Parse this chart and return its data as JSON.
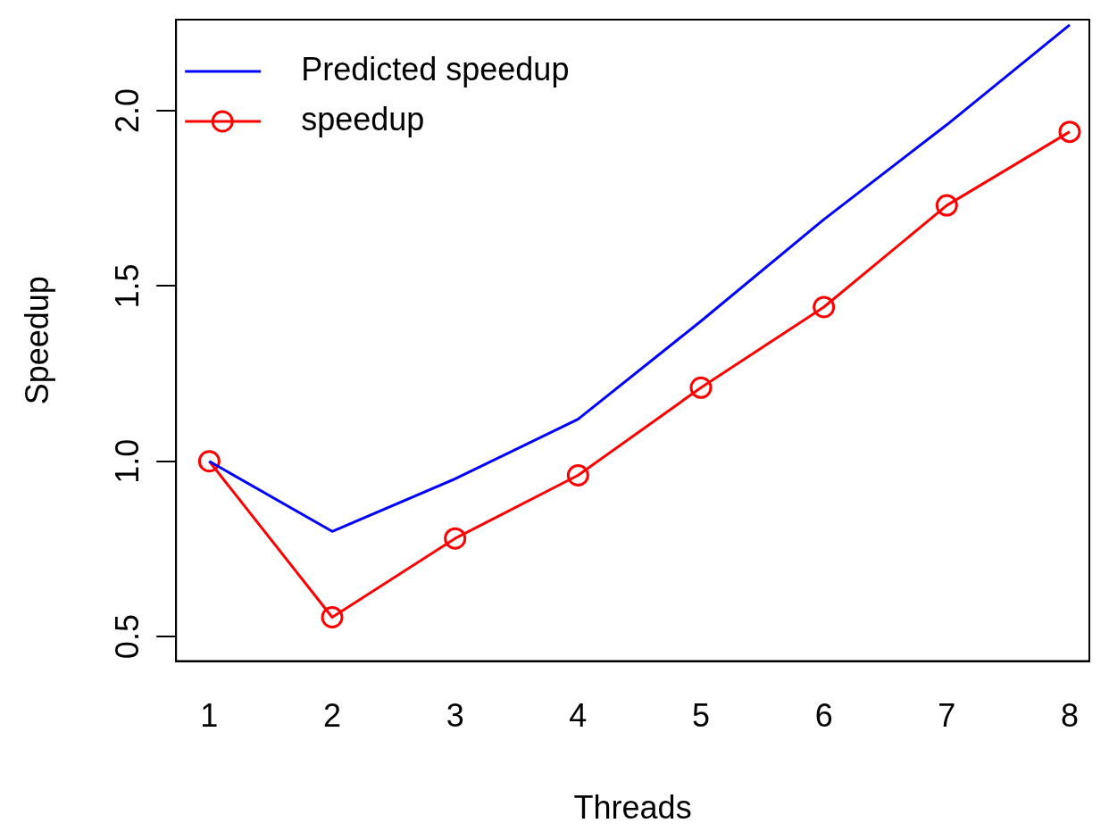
{
  "chart_data": {
    "type": "line",
    "xlabel": "Threads",
    "ylabel": "Speedup",
    "x": [
      1,
      2,
      3,
      4,
      5,
      6,
      7,
      8
    ],
    "series": [
      {
        "name": "Predicted speedup",
        "color": "#0000ff",
        "marker": "none",
        "values": [
          1.0,
          0.8,
          0.95,
          1.12,
          1.4,
          1.69,
          1.96,
          2.245
        ]
      },
      {
        "name": "speedup",
        "color": "#ff0000",
        "marker": "circle",
        "values": [
          1.0,
          0.555,
          0.78,
          0.96,
          1.21,
          1.44,
          1.73,
          1.94
        ]
      }
    ],
    "xlim": [
      0.73,
      8.16
    ],
    "xticks": [
      1,
      2,
      3,
      4,
      5,
      6,
      7,
      8
    ],
    "ylim": [
      0.43,
      2.26
    ],
    "yticks": [
      0.5,
      {
        "value": 1,
        "label": "1.0"
      },
      1.5,
      {
        "value": 2,
        "label": "2.0"
      }
    ],
    "legend": "top left",
    "grid": false,
    "line_style": "solid"
  }
}
